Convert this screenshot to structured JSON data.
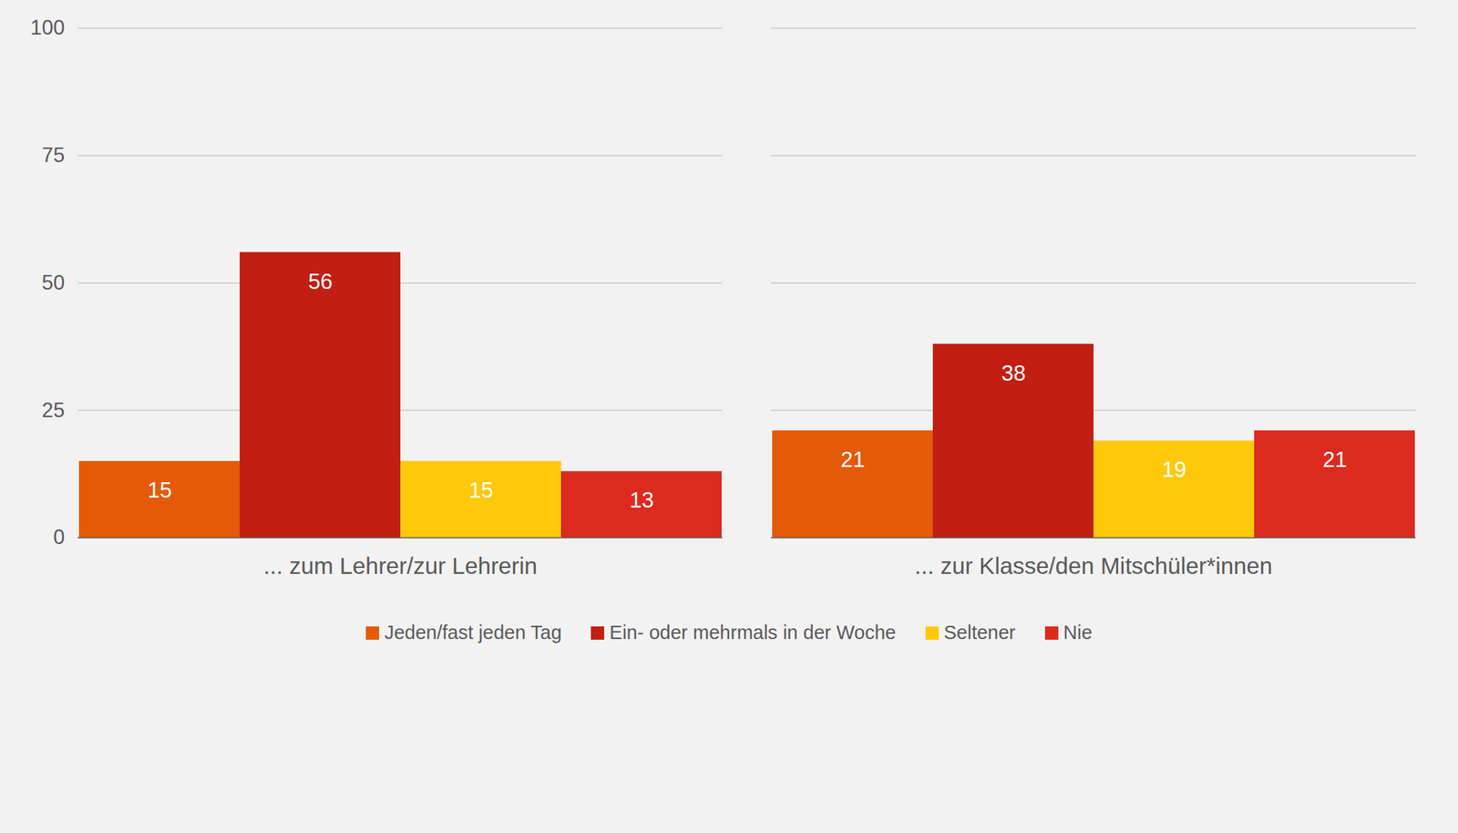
{
  "chart_data": {
    "type": "bar",
    "categories": [
      "... zum Lehrer/zur Lehrerin",
      "... zur Klasse/den Mitschüler*innen"
    ],
    "series": [
      {
        "name": "Jeden/fast jeden Tag",
        "color": "#E35B0A",
        "values": [
          15,
          21
        ]
      },
      {
        "name": "Ein- oder mehrmals in der Woche",
        "color": "#C01F12",
        "values": [
          56,
          38
        ]
      },
      {
        "name": "Seltener",
        "color": "#FFC90A",
        "values": [
          15,
          19
        ]
      },
      {
        "name": "Nie",
        "color": "#DC2A1E",
        "values": [
          13,
          21
        ]
      }
    ],
    "ylim": [
      0,
      100
    ],
    "yticks": [
      0,
      25,
      50,
      75,
      100
    ],
    "grid": true,
    "data_labels": true,
    "legend": "bottom"
  }
}
